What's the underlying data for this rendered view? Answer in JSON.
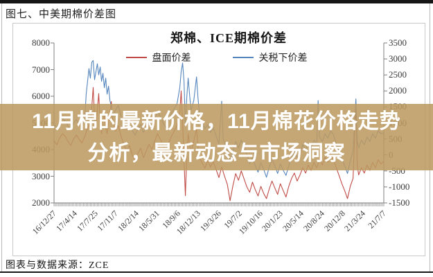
{
  "page": {
    "title": "图七、中美期棉价差图",
    "footer_source": "图表与数据来源：ZCE"
  },
  "overlay": {
    "text": "11月棉的最新价格，11月棉花价格走势分析，最新动态与市场洞察",
    "bg_color": "rgba(188,154,98,0.87)",
    "text_color": "#ffffff"
  },
  "chart_data": {
    "type": "line",
    "title": "郑棉、ICE期棉价差",
    "legend_position": "top",
    "grid": false,
    "legend": [
      {
        "name": "盘面价差",
        "color": "#c04a45",
        "axis": "left"
      },
      {
        "name": "关税下价差",
        "color": "#5585bd",
        "axis": "right"
      }
    ],
    "left_axis": {
      "min": 2000,
      "max": 8000,
      "ticks": [
        8000,
        7000,
        6000,
        5000,
        4000,
        3000,
        2000
      ]
    },
    "right_axis": {
      "min": -1500,
      "max": 3500,
      "ticks": [
        3500,
        3000,
        2500,
        2000,
        1500,
        1000,
        500,
        0,
        -500,
        -1000,
        -1500
      ]
    },
    "x_axis": {
      "labels": [
        "16/12/27",
        "17/4/14",
        "17/7/25",
        "17/11/7",
        "18/2/14",
        "18/5/31",
        "18/9/6",
        "18/12/13",
        "19/3/26",
        "19/7/2",
        "19/10/16",
        "20/1/23",
        "20/5/14",
        "20/8/24",
        "20/12/8",
        "21/3/24",
        "21/7/7"
      ],
      "weeks_total": 236,
      "minor_tick_count": 237
    },
    "series": [
      {
        "name": "盘面价差",
        "axis": "left",
        "color": "#c04a45",
        "points": [
          [
            0,
            4340
          ],
          [
            2,
            4180
          ],
          [
            4,
            4430
          ],
          [
            6,
            4600
          ],
          [
            8,
            4500
          ],
          [
            10,
            4300
          ],
          [
            12,
            4150
          ],
          [
            14,
            4400
          ],
          [
            16,
            4550
          ],
          [
            18,
            4380
          ],
          [
            20,
            4250
          ],
          [
            22,
            4500
          ],
          [
            24,
            4800
          ],
          [
            26,
            5000
          ],
          [
            27,
            5600
          ],
          [
            28,
            6330
          ],
          [
            29,
            5200
          ],
          [
            30,
            4800
          ],
          [
            31,
            5500
          ],
          [
            32,
            6100
          ],
          [
            33,
            5000
          ],
          [
            34,
            4600
          ],
          [
            35,
            5100
          ],
          [
            36,
            5300
          ],
          [
            37,
            4800
          ],
          [
            38,
            4600
          ],
          [
            40,
            5400
          ],
          [
            41,
            5800
          ],
          [
            42,
            5100
          ],
          [
            44,
            4700
          ],
          [
            46,
            4900
          ],
          [
            48,
            4500
          ],
          [
            50,
            4200
          ],
          [
            52,
            3950
          ],
          [
            54,
            4150
          ],
          [
            56,
            3800
          ],
          [
            58,
            3600
          ],
          [
            60,
            3850
          ],
          [
            62,
            4050
          ],
          [
            64,
            3700
          ],
          [
            66,
            3950
          ],
          [
            68,
            4200
          ],
          [
            70,
            4000
          ],
          [
            72,
            4300
          ],
          [
            74,
            4600
          ],
          [
            76,
            4400
          ],
          [
            78,
            4150
          ],
          [
            80,
            3950
          ],
          [
            82,
            4250
          ],
          [
            84,
            4500
          ],
          [
            86,
            4700
          ],
          [
            88,
            4900
          ],
          [
            90,
            5400
          ],
          [
            91,
            6200
          ],
          [
            92,
            5000
          ],
          [
            93,
            3600
          ],
          [
            94,
            2270
          ],
          [
            95,
            3800
          ],
          [
            96,
            4600
          ],
          [
            97,
            4200
          ],
          [
            98,
            3900
          ],
          [
            100,
            4300
          ],
          [
            102,
            4800
          ],
          [
            103,
            4100
          ],
          [
            104,
            3700
          ],
          [
            106,
            3500
          ],
          [
            108,
            3300
          ],
          [
            110,
            3600
          ],
          [
            112,
            3350
          ],
          [
            114,
            3550
          ],
          [
            116,
            3250
          ],
          [
            118,
            2950
          ],
          [
            120,
            3350
          ],
          [
            122,
            3000
          ],
          [
            124,
            2700
          ],
          [
            126,
            2080
          ],
          [
            128,
            2650
          ],
          [
            130,
            3100
          ],
          [
            132,
            2850
          ],
          [
            134,
            3200
          ],
          [
            136,
            2900
          ],
          [
            138,
            2600
          ],
          [
            140,
            2400
          ],
          [
            142,
            2780
          ],
          [
            144,
            2500
          ],
          [
            146,
            2260
          ],
          [
            148,
            2620
          ],
          [
            150,
            2360
          ],
          [
            152,
            2160
          ],
          [
            154,
            2520
          ],
          [
            156,
            2820
          ],
          [
            158,
            2560
          ],
          [
            160,
            2320
          ],
          [
            162,
            2720
          ],
          [
            164,
            2460
          ],
          [
            166,
            2220
          ],
          [
            168,
            2620
          ],
          [
            170,
            2920
          ],
          [
            172,
            3120
          ],
          [
            174,
            2820
          ],
          [
            176,
            3050
          ],
          [
            178,
            3320
          ],
          [
            180,
            3120
          ],
          [
            182,
            3420
          ],
          [
            184,
            3220
          ],
          [
            186,
            3520
          ],
          [
            188,
            3320
          ],
          [
            190,
            3620
          ],
          [
            192,
            3420
          ],
          [
            194,
            3720
          ],
          [
            196,
            3520
          ],
          [
            198,
            3820
          ],
          [
            200,
            3620
          ],
          [
            202,
            3320
          ],
          [
            204,
            3020
          ],
          [
            206,
            2720
          ],
          [
            208,
            2460
          ],
          [
            210,
            2160
          ],
          [
            212,
            2620
          ],
          [
            214,
            2920
          ],
          [
            216,
            5700
          ],
          [
            217,
            3400
          ],
          [
            218,
            3050
          ],
          [
            220,
            3320
          ],
          [
            222,
            3120
          ],
          [
            224,
            3420
          ],
          [
            226,
            3220
          ],
          [
            228,
            3520
          ],
          [
            230,
            3320
          ],
          [
            232,
            3620
          ],
          [
            234,
            3460
          ],
          [
            236,
            3560
          ]
        ]
      },
      {
        "name": "关税下价差",
        "axis": "right",
        "color": "#5585bd",
        "points": [
          [
            0,
            950
          ],
          [
            2,
            870
          ],
          [
            4,
            1030
          ],
          [
            6,
            1150
          ],
          [
            8,
            1050
          ],
          [
            10,
            900
          ],
          [
            12,
            800
          ],
          [
            14,
            1000
          ],
          [
            16,
            1100
          ],
          [
            18,
            950
          ],
          [
            20,
            870
          ],
          [
            22,
            1150
          ],
          [
            23,
            1900
          ],
          [
            24,
            2300
          ],
          [
            25,
            2700
          ],
          [
            26,
            2400
          ],
          [
            27,
            2900
          ],
          [
            28,
            2950
          ],
          [
            29,
            2350
          ],
          [
            30,
            2600
          ],
          [
            31,
            2850
          ],
          [
            32,
            2500
          ],
          [
            33,
            2750
          ],
          [
            34,
            2300
          ],
          [
            35,
            2550
          ],
          [
            36,
            2100
          ],
          [
            37,
            2400
          ],
          [
            38,
            1900
          ],
          [
            39,
            2150
          ],
          [
            40,
            1700
          ],
          [
            41,
            1500
          ],
          [
            42,
            1200
          ],
          [
            44,
            1400
          ],
          [
            46,
            1550
          ],
          [
            48,
            1200
          ],
          [
            50,
            1000
          ],
          [
            52,
            820
          ],
          [
            54,
            950
          ],
          [
            56,
            760
          ],
          [
            58,
            620
          ],
          [
            60,
            800
          ],
          [
            62,
            950
          ],
          [
            64,
            700
          ],
          [
            66,
            860
          ],
          [
            68,
            1050
          ],
          [
            70,
            900
          ],
          [
            72,
            1100
          ],
          [
            74,
            1350
          ],
          [
            76,
            1200
          ],
          [
            78,
            1000
          ],
          [
            80,
            860
          ],
          [
            82,
            1100
          ],
          [
            84,
            1300
          ],
          [
            86,
            1450
          ],
          [
            88,
            1600
          ],
          [
            90,
            2100
          ],
          [
            91,
            2600
          ],
          [
            92,
            2875
          ],
          [
            93,
            2300
          ],
          [
            94,
            900
          ],
          [
            95,
            1800
          ],
          [
            96,
            2400
          ],
          [
            97,
            1900
          ],
          [
            98,
            1400
          ],
          [
            100,
            1700
          ],
          [
            102,
            2440
          ],
          [
            103,
            1800
          ],
          [
            104,
            1300
          ],
          [
            106,
            1000
          ],
          [
            108,
            820
          ],
          [
            110,
            950
          ],
          [
            112,
            700
          ],
          [
            114,
            850
          ],
          [
            116,
            600
          ],
          [
            118,
            350
          ],
          [
            120,
            1680
          ],
          [
            121,
            500
          ],
          [
            122,
            380
          ],
          [
            124,
            160
          ],
          [
            126,
            -180
          ],
          [
            128,
            120
          ],
          [
            130,
            420
          ],
          [
            132,
            220
          ],
          [
            134,
            460
          ],
          [
            136,
            260
          ],
          [
            138,
            20
          ],
          [
            140,
            -280
          ],
          [
            142,
            -80
          ],
          [
            144,
            -330
          ],
          [
            146,
            -540
          ],
          [
            148,
            -240
          ],
          [
            150,
            -440
          ],
          [
            152,
            -700
          ],
          [
            154,
            -380
          ],
          [
            156,
            -140
          ],
          [
            158,
            -340
          ],
          [
            160,
            -580
          ],
          [
            162,
            -280
          ],
          [
            164,
            -480
          ],
          [
            166,
            -640
          ],
          [
            168,
            -340
          ],
          [
            170,
            -80
          ],
          [
            172,
            120
          ],
          [
            174,
            -80
          ],
          [
            176,
            60
          ],
          [
            178,
            320
          ],
          [
            180,
            160
          ],
          [
            182,
            360
          ],
          [
            184,
            220
          ],
          [
            186,
            460
          ],
          [
            188,
            320
          ],
          [
            189,
            1700
          ],
          [
            190,
            560
          ],
          [
            192,
            420
          ],
          [
            194,
            660
          ],
          [
            196,
            520
          ],
          [
            198,
            760
          ],
          [
            200,
            620
          ],
          [
            202,
            360
          ],
          [
            204,
            120
          ],
          [
            206,
            -140
          ],
          [
            208,
            -340
          ],
          [
            210,
            -580
          ],
          [
            212,
            -180
          ],
          [
            214,
            120
          ],
          [
            216,
            1750
          ],
          [
            217,
            420
          ],
          [
            218,
            220
          ],
          [
            220,
            460
          ],
          [
            222,
            320
          ],
          [
            224,
            560
          ],
          [
            226,
            420
          ],
          [
            228,
            660
          ],
          [
            230,
            520
          ],
          [
            232,
            760
          ],
          [
            234,
            660
          ],
          [
            236,
            700
          ]
        ]
      }
    ]
  }
}
